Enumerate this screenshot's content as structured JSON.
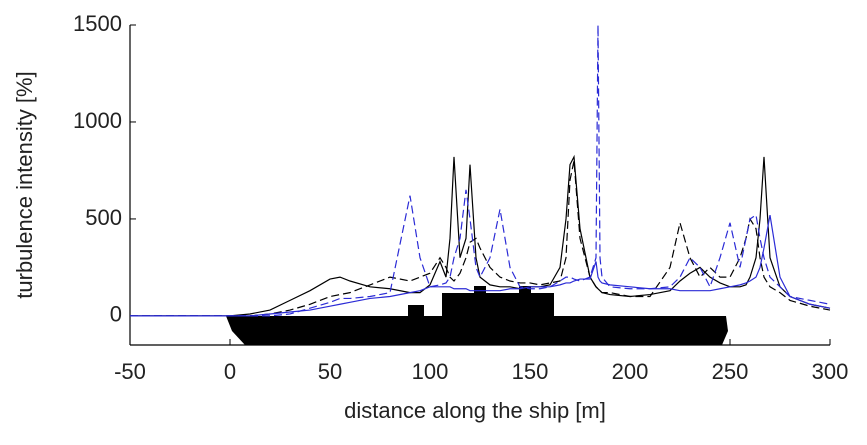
{
  "chart_data": {
    "type": "line",
    "xlabel": "distance along the ship [m]",
    "ylabel": "turbulence intensity [%]",
    "x": [
      -50,
      0,
      10,
      20,
      30,
      40,
      50,
      55,
      60,
      70,
      80,
      90,
      95,
      100,
      105,
      108,
      110,
      112,
      115,
      118,
      120,
      123,
      125,
      130,
      135,
      140,
      145,
      150,
      155,
      160,
      165,
      168,
      170,
      172,
      175,
      180,
      183,
      184,
      185,
      186,
      190,
      200,
      210,
      220,
      225,
      230,
      235,
      240,
      245,
      250,
      255,
      258,
      260,
      263,
      265,
      267,
      270,
      275,
      280,
      290,
      300
    ],
    "series": [
      {
        "color": "#000000",
        "style": "solid",
        "values": [
          0,
          0,
          10,
          30,
          80,
          130,
          190,
          200,
          180,
          150,
          140,
          120,
          120,
          160,
          280,
          200,
          400,
          820,
          300,
          400,
          780,
          300,
          200,
          160,
          150,
          150,
          140,
          150,
          150,
          160,
          250,
          500,
          780,
          820,
          450,
          200,
          150,
          140,
          130,
          120,
          110,
          100,
          110,
          130,
          180,
          220,
          250,
          200,
          170,
          150,
          150,
          160,
          200,
          300,
          500,
          820,
          300,
          150,
          100,
          60,
          40
        ]
      },
      {
        "color": "#000000",
        "style": "dashed",
        "values": [
          0,
          0,
          0,
          10,
          30,
          60,
          100,
          110,
          120,
          160,
          200,
          180,
          200,
          220,
          300,
          250,
          200,
          180,
          220,
          300,
          380,
          400,
          350,
          250,
          200,
          180,
          170,
          170,
          160,
          170,
          180,
          300,
          700,
          800,
          400,
          200,
          150,
          140,
          130,
          120,
          120,
          100,
          100,
          250,
          480,
          300,
          200,
          250,
          200,
          200,
          300,
          400,
          500,
          450,
          300,
          200,
          150,
          120,
          80,
          50,
          30
        ]
      },
      {
        "color": "#2b2bd6",
        "style": "solid",
        "values": [
          0,
          0,
          0,
          10,
          20,
          30,
          50,
          60,
          70,
          90,
          100,
          120,
          130,
          150,
          150,
          150,
          150,
          140,
          140,
          140,
          130,
          130,
          130,
          130,
          130,
          140,
          140,
          150,
          150,
          150,
          160,
          170,
          170,
          180,
          190,
          190,
          280,
          200,
          180,
          170,
          160,
          150,
          140,
          140,
          130,
          130,
          130,
          130,
          140,
          150,
          160,
          170,
          180,
          200,
          250,
          350,
          520,
          200,
          100,
          60,
          40
        ]
      },
      {
        "color": "#2b2bd6",
        "style": "dashed",
        "values": [
          0,
          0,
          0,
          0,
          10,
          40,
          70,
          90,
          90,
          100,
          120,
          620,
          300,
          150,
          160,
          170,
          200,
          300,
          400,
          650,
          500,
          250,
          200,
          300,
          550,
          250,
          150,
          140,
          140,
          150,
          180,
          200,
          200,
          190,
          180,
          200,
          300,
          1500,
          300,
          200,
          150,
          140,
          140,
          150,
          200,
          300,
          250,
          150,
          300,
          480,
          250,
          400,
          500,
          520,
          400,
          300,
          200,
          150,
          100,
          80,
          60
        ]
      }
    ],
    "xlim": [
      -50,
      300
    ],
    "xticks": [
      -50,
      0,
      50,
      100,
      150,
      200,
      250,
      300
    ],
    "ylim": [
      -150,
      1500
    ],
    "yticks": [
      0,
      500,
      1000,
      1500
    ]
  }
}
